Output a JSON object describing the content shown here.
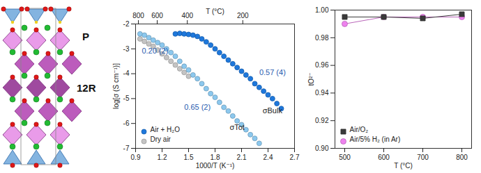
{
  "structure": {
    "labels": [
      "P",
      "12R"
    ]
  },
  "chart_data": [
    {
      "type": "scatter",
      "xlabel": "1000/T (K⁻¹)",
      "ylabel": "log[σ (S cm⁻¹)]",
      "x2label": "T (°C)",
      "xlim": [
        0.9,
        2.7
      ],
      "xticks": [
        0.9,
        1.2,
        1.5,
        1.8,
        2.1,
        2.4,
        2.7
      ],
      "x2ticks": [
        {
          "value": 0.932,
          "label": "800"
        },
        {
          "value": 1.145,
          "label": "600"
        },
        {
          "value": 1.486,
          "label": "400"
        },
        {
          "value": 2.114,
          "label": "200"
        }
      ],
      "ylim": [
        -7,
        -2
      ],
      "yticks": [
        -7,
        -6,
        -5,
        -4,
        -3,
        -2
      ],
      "grid": false,
      "legend": "lower left",
      "line_style": "none",
      "series": [
        {
          "name": "Air + H₂O",
          "color": "#1e78dc",
          "marker": "circle",
          "x": [
            1.35,
            1.4,
            1.45,
            1.5,
            1.55,
            1.6,
            1.65,
            1.7,
            1.75,
            1.8,
            1.85,
            1.9,
            1.95,
            2.0,
            2.05,
            2.1,
            2.15,
            2.2,
            2.25,
            2.3,
            2.35,
            2.4,
            2.45,
            2.5,
            2.55
          ],
          "values": [
            -2.4,
            -2.38,
            -2.4,
            -2.42,
            -2.45,
            -2.5,
            -2.6,
            -2.72,
            -2.85,
            -3.0,
            -3.15,
            -3.3,
            -3.45,
            -3.6,
            -3.75,
            -3.9,
            -4.05,
            -4.2,
            -4.4,
            -4.55,
            -4.7,
            -4.85,
            -5.0,
            -5.2,
            -5.4
          ]
        },
        {
          "name": "Air + H₂O",
          "color": "#8cc8ee",
          "marker": "circle",
          "x": [
            0.95,
            1.0,
            1.05,
            1.1,
            1.15,
            1.2,
            1.25,
            1.3,
            1.35,
            1.4,
            1.45,
            1.5,
            1.55,
            1.6,
            1.65,
            1.7,
            1.75,
            1.8,
            1.85,
            1.9,
            1.95,
            2.0,
            2.05,
            2.1,
            2.15,
            2.2,
            2.25,
            2.3
          ],
          "values": [
            -2.4,
            -2.45,
            -2.55,
            -2.65,
            -2.75,
            -2.85,
            -3.0,
            -3.15,
            -3.3,
            -3.5,
            -3.7,
            -3.85,
            -4.05,
            -4.2,
            -4.4,
            -4.6,
            -4.8,
            -4.95,
            -5.15,
            -5.35,
            -5.5,
            -5.7,
            -5.9,
            -6.05,
            -6.25,
            -6.45,
            -6.6,
            -6.8
          ]
        },
        {
          "name": "Dry air",
          "color": "#c4c4c4",
          "marker": "circle",
          "x": [
            0.95,
            1.0,
            1.05,
            1.1,
            1.15,
            1.2,
            1.25,
            1.3,
            1.35,
            1.4,
            1.45,
            1.5
          ],
          "values": [
            -2.6,
            -2.7,
            -2.8,
            -2.9,
            -3.05,
            -3.2,
            -3.35,
            -3.5,
            -3.65,
            -3.8,
            -3.95,
            -4.1
          ]
        }
      ],
      "annotations": [
        {
          "text": "0.20 (2)",
          "x": 1.12,
          "y": -3.1,
          "color": "#2a5db0"
        },
        {
          "text": "0.57 (4)",
          "x": 2.45,
          "y": -3.95,
          "color": "#2a5db0"
        },
        {
          "text": "0.65 (2)",
          "x": 1.6,
          "y": -5.35,
          "color": "#2a5db0"
        },
        {
          "text": "σBulk",
          "x": 2.45,
          "y": -5.5,
          "color": "#222222"
        },
        {
          "text": "σTot",
          "x": 2.05,
          "y": -6.15,
          "color": "#222222"
        }
      ]
    },
    {
      "type": "line",
      "xlabel": "T (°C)",
      "ylabel": "tO²⁻",
      "xlim": [
        475,
        825
      ],
      "xticks": [
        500,
        600,
        700,
        800
      ],
      "ylim": [
        0.9,
        1.0
      ],
      "yticks": [
        {
          "value": 0.9,
          "label": "0.90"
        },
        {
          "value": 0.92,
          "label": "0.92"
        },
        {
          "value": 0.94,
          "label": "0.94"
        },
        {
          "value": 0.96,
          "label": "0.96"
        },
        {
          "value": 0.98,
          "label": "0.98"
        },
        {
          "value": 1.0,
          "label": "1.00"
        }
      ],
      "grid": false,
      "legend": "lower left",
      "line_style": "solid",
      "series": [
        {
          "name": "Air/O₂",
          "color": "#3a3a3a",
          "marker": "square",
          "x": [
            500,
            600,
            700,
            800
          ],
          "values": [
            0.995,
            0.995,
            0.994,
            0.997
          ]
        },
        {
          "name": "Air/5% H₂ (in Ar)",
          "color": "#ee82ee",
          "marker": "circle",
          "x": [
            500,
            600,
            700,
            800
          ],
          "values": [
            0.99,
            0.995,
            0.995,
            0.995
          ]
        }
      ]
    }
  ]
}
